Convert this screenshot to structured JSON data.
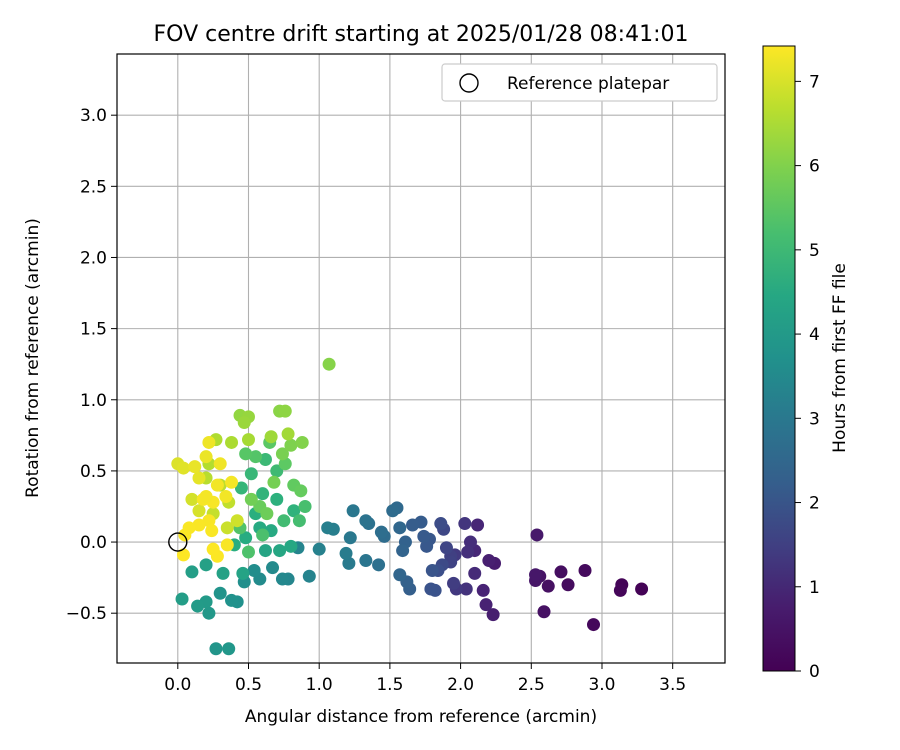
{
  "chart_data": {
    "type": "scatter",
    "title": "FOV centre drift starting at 2025/01/28 08:41:01",
    "xlabel": "Angular distance from reference (arcmin)",
    "ylabel": "Rotation from reference (arcmin)",
    "xlim": [
      -0.43,
      3.87
    ],
    "ylim": [
      -0.85,
      3.43
    ],
    "xticks": [
      "0.0",
      "0.5",
      "1.0",
      "1.5",
      "2.0",
      "2.5",
      "3.0",
      "3.5"
    ],
    "xtick_values": [
      0,
      0.5,
      1.0,
      1.5,
      2.0,
      2.5,
      3.0,
      3.5
    ],
    "yticks": [
      "−0.5",
      "0.0",
      "0.5",
      "1.0",
      "1.5",
      "2.0",
      "2.5",
      "3.0"
    ],
    "ytick_values": [
      -0.5,
      0,
      0.5,
      1.0,
      1.5,
      2.0,
      2.5,
      3.0
    ],
    "grid": true,
    "legend": {
      "placement": "top-right",
      "entries": [
        {
          "label": "Reference platepar",
          "marker": "open-circle",
          "x": 0,
          "y": 0
        }
      ]
    },
    "colorbar": {
      "label": "Hours from first FF file",
      "colormap": "viridis",
      "range": [
        0,
        7.42
      ],
      "ticks": [
        "0",
        "1",
        "2",
        "3",
        "4",
        "5",
        "6",
        "7"
      ],
      "tick_values": [
        0,
        1,
        2,
        3,
        4,
        5,
        6,
        7
      ]
    },
    "series": [
      {
        "points": [
          [
            3.28,
            -0.33,
            0.05
          ],
          [
            3.14,
            -0.3,
            0.1
          ],
          [
            3.13,
            -0.34,
            0.15
          ],
          [
            2.94,
            -0.58,
            0.2
          ],
          [
            2.88,
            -0.2,
            0.25
          ],
          [
            2.76,
            -0.3,
            0.3
          ],
          [
            2.71,
            -0.21,
            0.35
          ],
          [
            2.62,
            -0.31,
            0.4
          ],
          [
            2.59,
            -0.49,
            0.45
          ],
          [
            2.56,
            -0.24,
            0.5
          ],
          [
            2.53,
            -0.27,
            0.55
          ],
          [
            2.53,
            -0.23,
            0.6
          ],
          [
            2.54,
            0.05,
            0.65
          ],
          [
            2.24,
            -0.15,
            0.75
          ],
          [
            2.23,
            -0.51,
            0.8
          ],
          [
            2.2,
            -0.13,
            0.85
          ],
          [
            2.18,
            -0.44,
            0.9
          ],
          [
            2.16,
            -0.34,
            0.95
          ],
          [
            2.12,
            0.12,
            1.0
          ],
          [
            2.1,
            -0.06,
            1.05
          ],
          [
            2.1,
            -0.22,
            1.1
          ],
          [
            2.07,
            0.0,
            1.15
          ],
          [
            2.05,
            -0.07,
            1.2
          ],
          [
            2.04,
            -0.33,
            1.25
          ],
          [
            2.03,
            0.13,
            1.3
          ],
          [
            1.97,
            -0.33,
            1.35
          ],
          [
            1.96,
            -0.09,
            1.4
          ],
          [
            1.95,
            -0.29,
            1.45
          ],
          [
            1.93,
            -0.1,
            1.5
          ],
          [
            1.93,
            -0.14,
            1.55
          ],
          [
            1.9,
            -0.04,
            1.6
          ],
          [
            1.88,
            0.09,
            1.65
          ],
          [
            1.87,
            -0.16,
            1.7
          ],
          [
            1.86,
            0.13,
            1.75
          ],
          [
            1.84,
            -0.2,
            1.8
          ],
          [
            1.82,
            -0.34,
            1.85
          ],
          [
            1.79,
            -0.33,
            1.9
          ],
          [
            1.8,
            -0.2,
            1.95
          ],
          [
            1.78,
            0.02,
            2.0
          ],
          [
            1.76,
            -0.03,
            2.05
          ],
          [
            1.74,
            0.04,
            2.1
          ],
          [
            1.72,
            0.14,
            2.15
          ],
          [
            1.66,
            0.12,
            2.2
          ],
          [
            1.64,
            -0.33,
            2.25
          ],
          [
            1.62,
            -0.28,
            2.3
          ],
          [
            1.61,
            0.0,
            2.35
          ],
          [
            1.59,
            -0.06,
            2.4
          ],
          [
            1.57,
            -0.23,
            2.45
          ],
          [
            1.57,
            0.1,
            2.5
          ],
          [
            1.55,
            0.24,
            2.55
          ],
          [
            1.52,
            0.22,
            2.6
          ],
          [
            1.46,
            0.04,
            2.65
          ],
          [
            1.44,
            0.07,
            2.7
          ],
          [
            1.42,
            -0.16,
            2.75
          ],
          [
            1.35,
            0.13,
            2.8
          ],
          [
            1.33,
            0.15,
            2.85
          ],
          [
            1.33,
            -0.13,
            2.9
          ],
          [
            1.24,
            0.22,
            2.95
          ],
          [
            1.22,
            0.03,
            3.0
          ],
          [
            1.21,
            -0.15,
            3.05
          ],
          [
            1.19,
            -0.08,
            3.1
          ],
          [
            1.1,
            0.09,
            3.15
          ],
          [
            1.06,
            0.1,
            3.2
          ],
          [
            1.0,
            -0.05,
            3.25
          ],
          [
            0.93,
            -0.24,
            3.3
          ],
          [
            0.85,
            -0.04,
            3.35
          ],
          [
            0.78,
            -0.26,
            3.4
          ],
          [
            0.74,
            -0.26,
            3.45
          ],
          [
            0.67,
            -0.18,
            3.5
          ],
          [
            0.58,
            -0.26,
            3.55
          ],
          [
            0.54,
            -0.2,
            3.6
          ],
          [
            0.47,
            -0.28,
            3.65
          ],
          [
            0.42,
            -0.42,
            3.7
          ],
          [
            0.38,
            -0.41,
            3.75
          ],
          [
            0.3,
            -0.36,
            3.8
          ],
          [
            0.27,
            -0.75,
            3.85
          ],
          [
            0.36,
            -0.75,
            3.9
          ],
          [
            0.22,
            -0.5,
            3.95
          ],
          [
            0.2,
            -0.42,
            4.0
          ],
          [
            0.14,
            -0.45,
            4.05
          ],
          [
            0.03,
            -0.4,
            4.1
          ],
          [
            0.1,
            -0.21,
            4.15
          ],
          [
            0.2,
            -0.16,
            4.2
          ],
          [
            0.32,
            -0.22,
            4.25
          ],
          [
            0.46,
            -0.22,
            4.3
          ],
          [
            0.62,
            -0.06,
            4.35
          ],
          [
            0.72,
            -0.06,
            4.4
          ],
          [
            0.8,
            -0.03,
            4.45
          ],
          [
            0.66,
            0.08,
            4.5
          ],
          [
            0.58,
            0.1,
            4.55
          ],
          [
            0.48,
            0.03,
            4.6
          ],
          [
            0.4,
            -0.02,
            4.65
          ],
          [
            0.55,
            0.2,
            4.7
          ],
          [
            0.7,
            0.3,
            4.75
          ],
          [
            0.82,
            0.22,
            4.8
          ],
          [
            0.6,
            0.34,
            4.85
          ],
          [
            0.45,
            0.38,
            4.9
          ],
          [
            0.52,
            0.48,
            4.95
          ],
          [
            0.62,
            0.58,
            5.0
          ],
          [
            0.7,
            0.5,
            5.05
          ],
          [
            0.75,
            0.15,
            5.1
          ],
          [
            0.86,
            0.15,
            5.15
          ],
          [
            0.9,
            0.25,
            5.2
          ],
          [
            0.6,
            0.05,
            5.25
          ],
          [
            0.5,
            -0.07,
            5.3
          ],
          [
            0.44,
            0.1,
            5.35
          ],
          [
            0.55,
            0.6,
            5.4
          ],
          [
            0.48,
            0.62,
            5.45
          ],
          [
            0.65,
            0.7,
            5.5
          ],
          [
            0.76,
            0.55,
            5.55
          ],
          [
            0.82,
            0.4,
            5.6
          ],
          [
            0.87,
            0.36,
            5.65
          ],
          [
            0.58,
            0.25,
            5.7
          ],
          [
            0.63,
            0.2,
            5.75
          ],
          [
            0.52,
            0.3,
            5.8
          ],
          [
            0.68,
            0.42,
            5.85
          ],
          [
            0.74,
            0.62,
            5.9
          ],
          [
            0.8,
            0.68,
            5.95
          ],
          [
            0.88,
            0.7,
            6.0
          ],
          [
            1.07,
            1.25,
            6.05
          ],
          [
            0.72,
            0.92,
            6.1
          ],
          [
            0.76,
            0.92,
            6.15
          ],
          [
            0.44,
            0.89,
            6.2
          ],
          [
            0.5,
            0.88,
            6.25
          ],
          [
            0.47,
            0.84,
            6.3
          ],
          [
            0.66,
            0.74,
            6.35
          ],
          [
            0.78,
            0.76,
            6.4
          ],
          [
            0.5,
            0.72,
            6.45
          ],
          [
            0.38,
            0.7,
            6.5
          ],
          [
            0.27,
            0.72,
            6.55
          ],
          [
            0.22,
            0.55,
            6.6
          ],
          [
            0.2,
            0.45,
            6.65
          ],
          [
            0.3,
            0.4,
            6.7
          ],
          [
            0.36,
            0.28,
            6.75
          ],
          [
            0.25,
            0.2,
            6.8
          ],
          [
            0.35,
            0.1,
            6.85
          ],
          [
            0.42,
            0.15,
            6.9
          ],
          [
            0.1,
            0.3,
            6.95
          ],
          [
            0.15,
            0.22,
            7.0
          ],
          [
            0.0,
            0.55,
            7.05
          ],
          [
            0.04,
            0.52,
            7.1
          ],
          [
            0.15,
            0.45,
            7.15
          ],
          [
            0.12,
            0.53,
            7.2
          ],
          [
            0.2,
            0.6,
            7.22
          ],
          [
            0.22,
            0.7,
            7.25
          ],
          [
            0.3,
            0.55,
            7.28
          ],
          [
            0.28,
            0.4,
            7.3
          ],
          [
            0.38,
            0.42,
            7.32
          ],
          [
            0.18,
            0.3,
            7.34
          ],
          [
            0.25,
            0.28,
            7.35
          ],
          [
            0.22,
            0.15,
            7.36
          ],
          [
            0.15,
            0.12,
            7.37
          ],
          [
            0.08,
            0.1,
            7.38
          ],
          [
            0.05,
            0.05,
            7.39
          ],
          [
            0.28,
            -0.1,
            7.4
          ],
          [
            0.25,
            -0.05,
            7.41
          ],
          [
            0.04,
            -0.09,
            7.42
          ],
          [
            0.34,
            0.32,
            7.3
          ],
          [
            0.2,
            0.32,
            7.32
          ],
          [
            0.35,
            -0.02,
            7.36
          ],
          [
            0.24,
            0.08,
            7.38
          ]
        ]
      }
    ]
  }
}
